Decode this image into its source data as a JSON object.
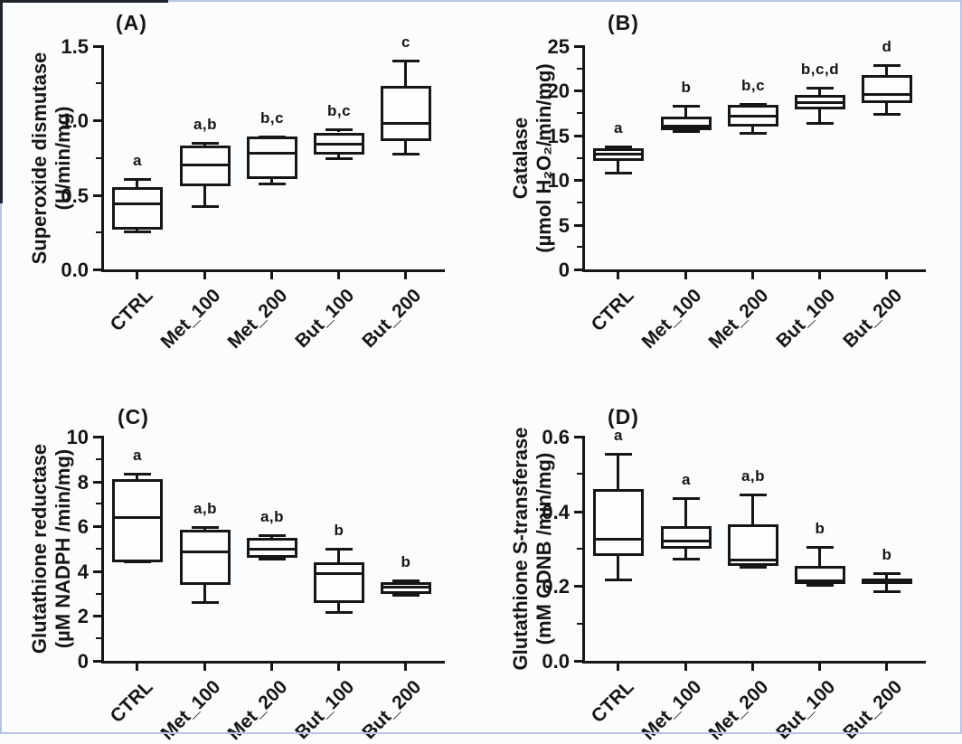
{
  "figure": {
    "description": "Four-panel box plot figure of antioxidant enzyme activities",
    "background_color": "#fbfcfe",
    "ink_color": "#161616",
    "frame_color": "#b7c5e6"
  },
  "chart_data": [
    {
      "panel_label": "(A)",
      "type": "box",
      "ylabel_lines": [
        "Superoxide dismutase",
        "(U/min/mg)"
      ],
      "ylim": [
        0,
        1.5
      ],
      "ytick_values": [
        0.0,
        0.5,
        1.0,
        1.5
      ],
      "ytick_labels": [
        "0.0",
        "0.5",
        "1.0",
        "1.5"
      ],
      "categories": [
        "CTRL",
        "Met_100",
        "Met_200",
        "But_100",
        "But_200"
      ],
      "boxes": [
        {
          "category": "CTRL",
          "sig": "a",
          "whisker_low": 0.25,
          "q1": 0.27,
          "median": 0.44,
          "q3": 0.55,
          "whisker_high": 0.61
        },
        {
          "category": "Met_100",
          "sig": "a,b",
          "whisker_low": 0.42,
          "q1": 0.56,
          "median": 0.7,
          "q3": 0.83,
          "whisker_high": 0.85
        },
        {
          "category": "Met_200",
          "sig": "b,c",
          "whisker_low": 0.57,
          "q1": 0.61,
          "median": 0.78,
          "q3": 0.89,
          "whisker_high": 0.89
        },
        {
          "category": "But_100",
          "sig": "b,c",
          "whisker_low": 0.74,
          "q1": 0.77,
          "median": 0.84,
          "q3": 0.92,
          "whisker_high": 0.94
        },
        {
          "category": "But_200",
          "sig": "c",
          "whisker_low": 0.77,
          "q1": 0.86,
          "median": 0.98,
          "q3": 1.23,
          "whisker_high": 1.4
        }
      ]
    },
    {
      "panel_label": "(B)",
      "type": "box",
      "ylabel_lines": [
        "Catalase",
        "(µmol H₂O₂/min/mg)"
      ],
      "ylim": [
        0,
        25
      ],
      "ytick_values": [
        0,
        5,
        10,
        15,
        20,
        25
      ],
      "ytick_labels": [
        "0",
        "5",
        "10",
        "15",
        "20",
        "25"
      ],
      "categories": [
        "CTRL",
        "Met_100",
        "Met_200",
        "But_100",
        "But_200"
      ],
      "boxes": [
        {
          "category": "CTRL",
          "sig": "a",
          "whisker_low": 10.7,
          "q1": 12.1,
          "median": 12.9,
          "q3": 13.6,
          "whisker_high": 13.8
        },
        {
          "category": "Met_100",
          "sig": "b",
          "whisker_low": 15.4,
          "q1": 15.6,
          "median": 16.0,
          "q3": 17.1,
          "whisker_high": 18.3
        },
        {
          "category": "Met_200",
          "sig": "b,c",
          "whisker_low": 15.2,
          "q1": 16.0,
          "median": 17.2,
          "q3": 18.4,
          "whisker_high": 18.5
        },
        {
          "category": "But_100",
          "sig": "b,c,d",
          "whisker_low": 16.3,
          "q1": 17.9,
          "median": 18.7,
          "q3": 19.5,
          "whisker_high": 20.3
        },
        {
          "category": "But_200",
          "sig": "d",
          "whisker_low": 17.3,
          "q1": 18.6,
          "median": 19.6,
          "q3": 21.8,
          "whisker_high": 22.9
        }
      ]
    },
    {
      "panel_label": "(C)",
      "type": "box",
      "ylabel_lines": [
        "Glutathione reductase",
        "(µM NADPH /min/mg)"
      ],
      "ylim": [
        0,
        10
      ],
      "ytick_values": [
        0,
        2,
        4,
        6,
        8,
        10
      ],
      "ytick_labels": [
        "0",
        "2",
        "4",
        "6",
        "8",
        "10"
      ],
      "categories": [
        "CTRL",
        "Met_100",
        "Met_200",
        "But_100",
        "But_200"
      ],
      "boxes": [
        {
          "category": "CTRL",
          "sig": "a",
          "whisker_low": 4.4,
          "q1": 4.4,
          "median": 6.4,
          "q3": 8.1,
          "whisker_high": 8.35
        },
        {
          "category": "Met_100",
          "sig": "a,b",
          "whisker_low": 2.6,
          "q1": 3.4,
          "median": 4.85,
          "q3": 5.85,
          "whisker_high": 5.95
        },
        {
          "category": "Met_200",
          "sig": "a,b",
          "whisker_low": 4.5,
          "q1": 4.6,
          "median": 5.0,
          "q3": 5.5,
          "whisker_high": 5.6
        },
        {
          "category": "But_100",
          "sig": "b",
          "whisker_low": 2.15,
          "q1": 2.6,
          "median": 3.9,
          "q3": 4.4,
          "whisker_high": 5.0
        },
        {
          "category": "But_200",
          "sig": "b",
          "whisker_low": 2.9,
          "q1": 3.0,
          "median": 3.3,
          "q3": 3.5,
          "whisker_high": 3.6
        }
      ]
    },
    {
      "panel_label": "(D)",
      "type": "box",
      "ylabel_lines": [
        "Glutathione S-transferase",
        "(mM CDNB /min/mg)"
      ],
      "ylim": [
        0,
        0.6
      ],
      "ytick_values": [
        0.0,
        0.2,
        0.4,
        0.6
      ],
      "ytick_labels": [
        "0.0",
        "0.2",
        "0.4",
        "0.6"
      ],
      "categories": [
        "CTRL",
        "Met_100",
        "Met_200",
        "But_100",
        "But_200"
      ],
      "boxes": [
        {
          "category": "CTRL",
          "sig": "a",
          "whisker_low": 0.215,
          "q1": 0.28,
          "median": 0.325,
          "q3": 0.46,
          "whisker_high": 0.555
        },
        {
          "category": "Met_100",
          "sig": "a",
          "whisker_low": 0.27,
          "q1": 0.3,
          "median": 0.32,
          "q3": 0.36,
          "whisker_high": 0.435
        },
        {
          "category": "Met_200",
          "sig": "a,b",
          "whisker_low": 0.25,
          "q1": 0.255,
          "median": 0.27,
          "q3": 0.365,
          "whisker_high": 0.445
        },
        {
          "category": "But_100",
          "sig": "b",
          "whisker_low": 0.2,
          "q1": 0.205,
          "median": 0.215,
          "q3": 0.255,
          "whisker_high": 0.305
        },
        {
          "category": "But_200",
          "sig": "b",
          "whisker_low": 0.185,
          "q1": 0.205,
          "median": 0.21,
          "q3": 0.22,
          "whisker_high": 0.235
        }
      ]
    }
  ]
}
